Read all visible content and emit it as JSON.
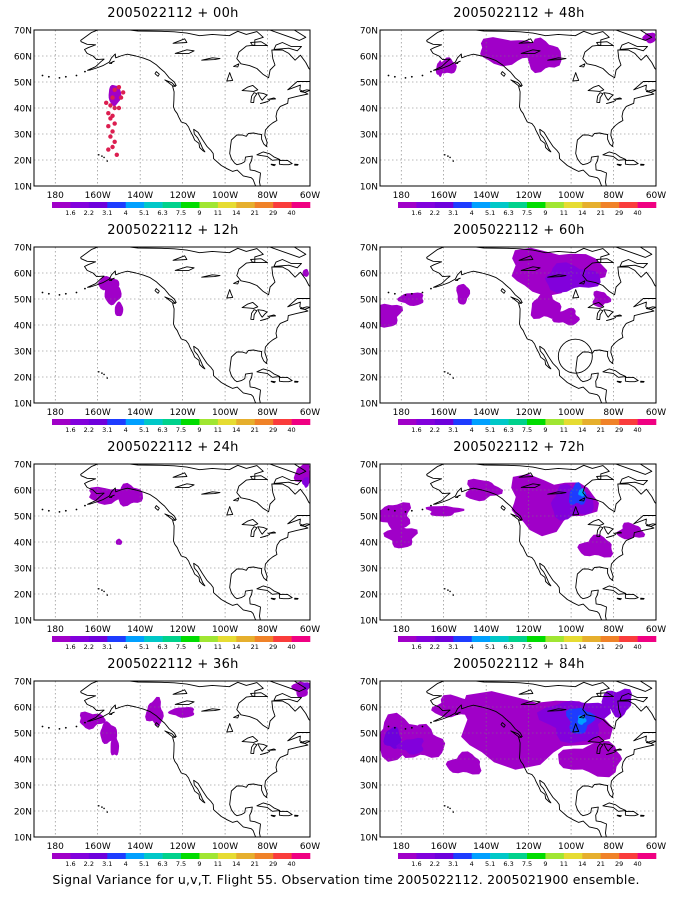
{
  "panels": [
    {
      "title": "2005022112 + 00h"
    },
    {
      "title": "2005022112 + 48h"
    },
    {
      "title": "2005022112 + 12h"
    },
    {
      "title": "2005022112 + 60h"
    },
    {
      "title": "2005022112 + 24h"
    },
    {
      "title": "2005022112 + 72h"
    },
    {
      "title": "2005022112 + 36h"
    },
    {
      "title": "2005022112 + 84h"
    }
  ],
  "axes": {
    "lat_labels": [
      "70N",
      "60N",
      "50N",
      "40N",
      "30N",
      "20N",
      "10N"
    ],
    "lon_labels": [
      "180",
      "160W",
      "140W",
      "120W",
      "100W",
      "80W",
      "60W"
    ]
  },
  "colorbar": {
    "labels": [
      "1.6",
      "2.2",
      "3.1",
      "4",
      "5.1",
      "6.3",
      "7.5",
      "9",
      "11",
      "14",
      "21",
      "29",
      "40"
    ],
    "colors": [
      "#a000c8",
      "#8200dc",
      "#6e00dc",
      "#1e3cff",
      "#00a0ff",
      "#00c8c8",
      "#00d28c",
      "#00dc00",
      "#a0e632",
      "#e6dc32",
      "#e6af2d",
      "#f08228",
      "#fa3c3c",
      "#f00082"
    ]
  },
  "footer": "Signal Variance for u,v,T. Flight 55. Observation time 2005022112. 2005021900 ensemble."
}
